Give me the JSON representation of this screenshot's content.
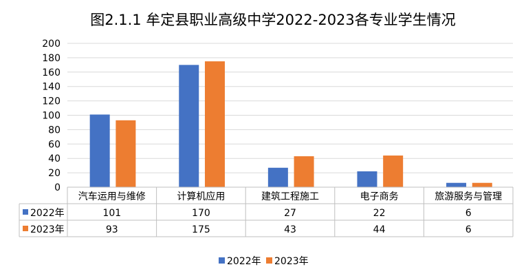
{
  "chart_data": {
    "type": "bar",
    "title": "图2.1.1 牟定县职业高级中学2022-2023各专业学生情况",
    "categories": [
      "汽车运用与维修",
      "计算机应用",
      "建筑工程施工",
      "电子商务",
      "旅游服务与管理"
    ],
    "series": [
      {
        "name": "2022年",
        "color": "#4472C4",
        "values": [
          101,
          170,
          27,
          22,
          6
        ]
      },
      {
        "name": "2023年",
        "color": "#ED7D31",
        "values": [
          93,
          175,
          43,
          44,
          6
        ]
      }
    ],
    "ylim": [
      0,
      200
    ],
    "yticks": [
      "0",
      "20",
      "40",
      "60",
      "80",
      "100",
      "120",
      "140",
      "160",
      "180",
      "200"
    ],
    "grid": true,
    "legend": "bottom",
    "data_table": true
  }
}
